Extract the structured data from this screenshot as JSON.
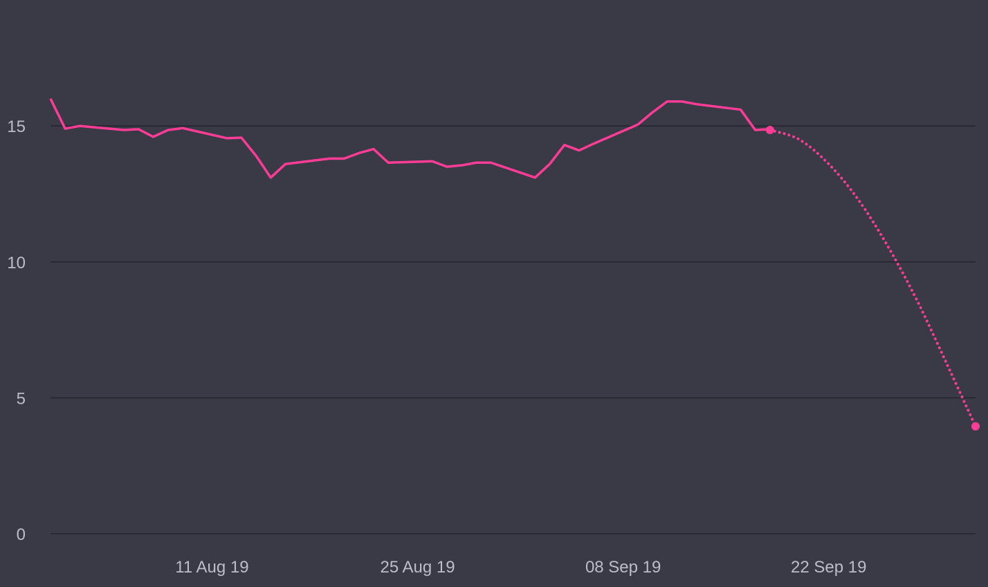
{
  "colors": {
    "background": "#3a3a46",
    "grid": "#24242c",
    "line": "#ff3d96",
    "tick_text": "#bdbdc8"
  },
  "chart_data": {
    "type": "line",
    "title": "",
    "xlabel": "",
    "ylabel": "",
    "ylim": [
      0,
      19.2
    ],
    "xlim": [
      "2019-07-31",
      "2019-10-02"
    ],
    "grid": true,
    "legend": "none",
    "y_ticks": [
      {
        "value": 0,
        "label": "0"
      },
      {
        "value": 5,
        "label": "5"
      },
      {
        "value": 10,
        "label": "10"
      },
      {
        "value": 15,
        "label": "15"
      }
    ],
    "x_ticks": [
      {
        "date": "2019-08-11",
        "label": "11 Aug 19"
      },
      {
        "date": "2019-08-25",
        "label": "25 Aug 19"
      },
      {
        "date": "2019-09-08",
        "label": "08 Sep 19"
      },
      {
        "date": "2019-09-22",
        "label": "22 Sep 19"
      }
    ],
    "series": [
      {
        "style": "solid",
        "x": [
          "2019-07-31",
          "2019-08-01",
          "2019-08-02",
          "2019-08-05",
          "2019-08-06",
          "2019-08-07",
          "2019-08-08",
          "2019-08-09",
          "2019-08-12",
          "2019-08-13",
          "2019-08-14",
          "2019-08-15",
          "2019-08-16",
          "2019-08-19",
          "2019-08-20",
          "2019-08-21",
          "2019-08-22",
          "2019-08-23",
          "2019-08-26",
          "2019-08-27",
          "2019-08-28",
          "2019-08-29",
          "2019-08-30",
          "2019-09-02",
          "2019-09-03",
          "2019-09-04",
          "2019-09-05",
          "2019-09-06",
          "2019-09-09",
          "2019-09-10",
          "2019-09-11",
          "2019-09-12",
          "2019-09-13",
          "2019-09-16",
          "2019-09-17",
          "2019-09-18"
        ],
        "values": [
          16.0,
          14.9,
          15.0,
          14.85,
          14.88,
          14.6,
          14.85,
          14.92,
          14.55,
          14.57,
          13.9,
          13.1,
          13.6,
          13.8,
          13.8,
          14.0,
          14.15,
          13.65,
          13.7,
          13.5,
          13.55,
          13.65,
          13.65,
          13.1,
          13.6,
          14.3,
          14.1,
          14.35,
          15.05,
          15.5,
          15.9,
          15.9,
          15.8,
          15.6,
          14.85,
          14.88
        ]
      },
      {
        "style": "dotted",
        "x": [
          "2019-09-18",
          "2019-09-20",
          "2019-09-22",
          "2019-09-24",
          "2019-09-26",
          "2019-09-28",
          "2019-09-30",
          "2019-10-02"
        ],
        "values": [
          14.85,
          14.5,
          13.6,
          12.3,
          10.6,
          8.6,
          6.3,
          3.95
        ],
        "endpoint_markers": true
      }
    ]
  }
}
